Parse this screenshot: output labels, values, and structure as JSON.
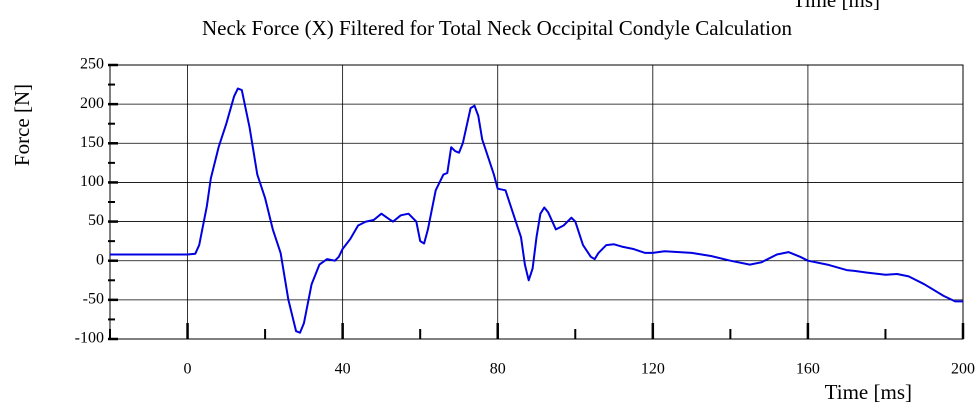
{
  "chart_data": {
    "type": "line",
    "title": "Neck Force (X) Filtered for Total Neck Occipital Condyle Calculation",
    "xlabel": "Time [ms]",
    "ylabel": "Force [N]",
    "annotations": [
      {
        "text": "Time [ms]"
      }
    ],
    "xlim": [
      -20,
      200
    ],
    "ylim": [
      -100,
      250
    ],
    "xticks": [
      0,
      40,
      80,
      120,
      160,
      200
    ],
    "xminor": [
      -20,
      20,
      60,
      100,
      140,
      180
    ],
    "yticks": [
      -100,
      -50,
      0,
      50,
      100,
      150,
      200,
      250
    ],
    "yminor": [
      -75,
      -25,
      25,
      75,
      125,
      175,
      225
    ],
    "grid": true,
    "x": [
      -20,
      0,
      2,
      3,
      5,
      6,
      8,
      10,
      12,
      13,
      14,
      16,
      18,
      20,
      22,
      24,
      26,
      28,
      29,
      30,
      32,
      34,
      36,
      38,
      39,
      40,
      42,
      44,
      46,
      48,
      50,
      52,
      53,
      55,
      57,
      59,
      60,
      61,
      62,
      64,
      66,
      67,
      68,
      69,
      70,
      71,
      73,
      74,
      75,
      76,
      77,
      79,
      80,
      82,
      84,
      86,
      87,
      88,
      89,
      90,
      91,
      92,
      93,
      95,
      97,
      99,
      100,
      102,
      104,
      105,
      106,
      108,
      110,
      112,
      115,
      118,
      120,
      123,
      130,
      135,
      140,
      145,
      148,
      152,
      155,
      158,
      160,
      165,
      170,
      172,
      175,
      180,
      183,
      186,
      190,
      195,
      198,
      200
    ],
    "series": [
      {
        "name": "Force",
        "color": "#0000e0",
        "values": [
          8,
          8,
          9,
          20,
          70,
          105,
          145,
          175,
          210,
          220,
          218,
          170,
          110,
          80,
          40,
          10,
          -50,
          -90,
          -92,
          -80,
          -30,
          -5,
          2,
          0,
          5,
          15,
          28,
          45,
          50,
          52,
          60,
          53,
          50,
          58,
          60,
          50,
          25,
          22,
          40,
          90,
          110,
          112,
          145,
          140,
          138,
          150,
          195,
          198,
          185,
          155,
          140,
          110,
          92,
          90,
          60,
          30,
          -5,
          -25,
          -10,
          30,
          60,
          68,
          62,
          40,
          45,
          55,
          50,
          20,
          5,
          2,
          10,
          20,
          21,
          18,
          15,
          10,
          10,
          12,
          10,
          6,
          0,
          -5,
          -2,
          8,
          11,
          5,
          0,
          -5,
          -12,
          -13,
          -15,
          -18,
          -17,
          -20,
          -30,
          -45,
          -52,
          -52
        ]
      }
    ]
  }
}
